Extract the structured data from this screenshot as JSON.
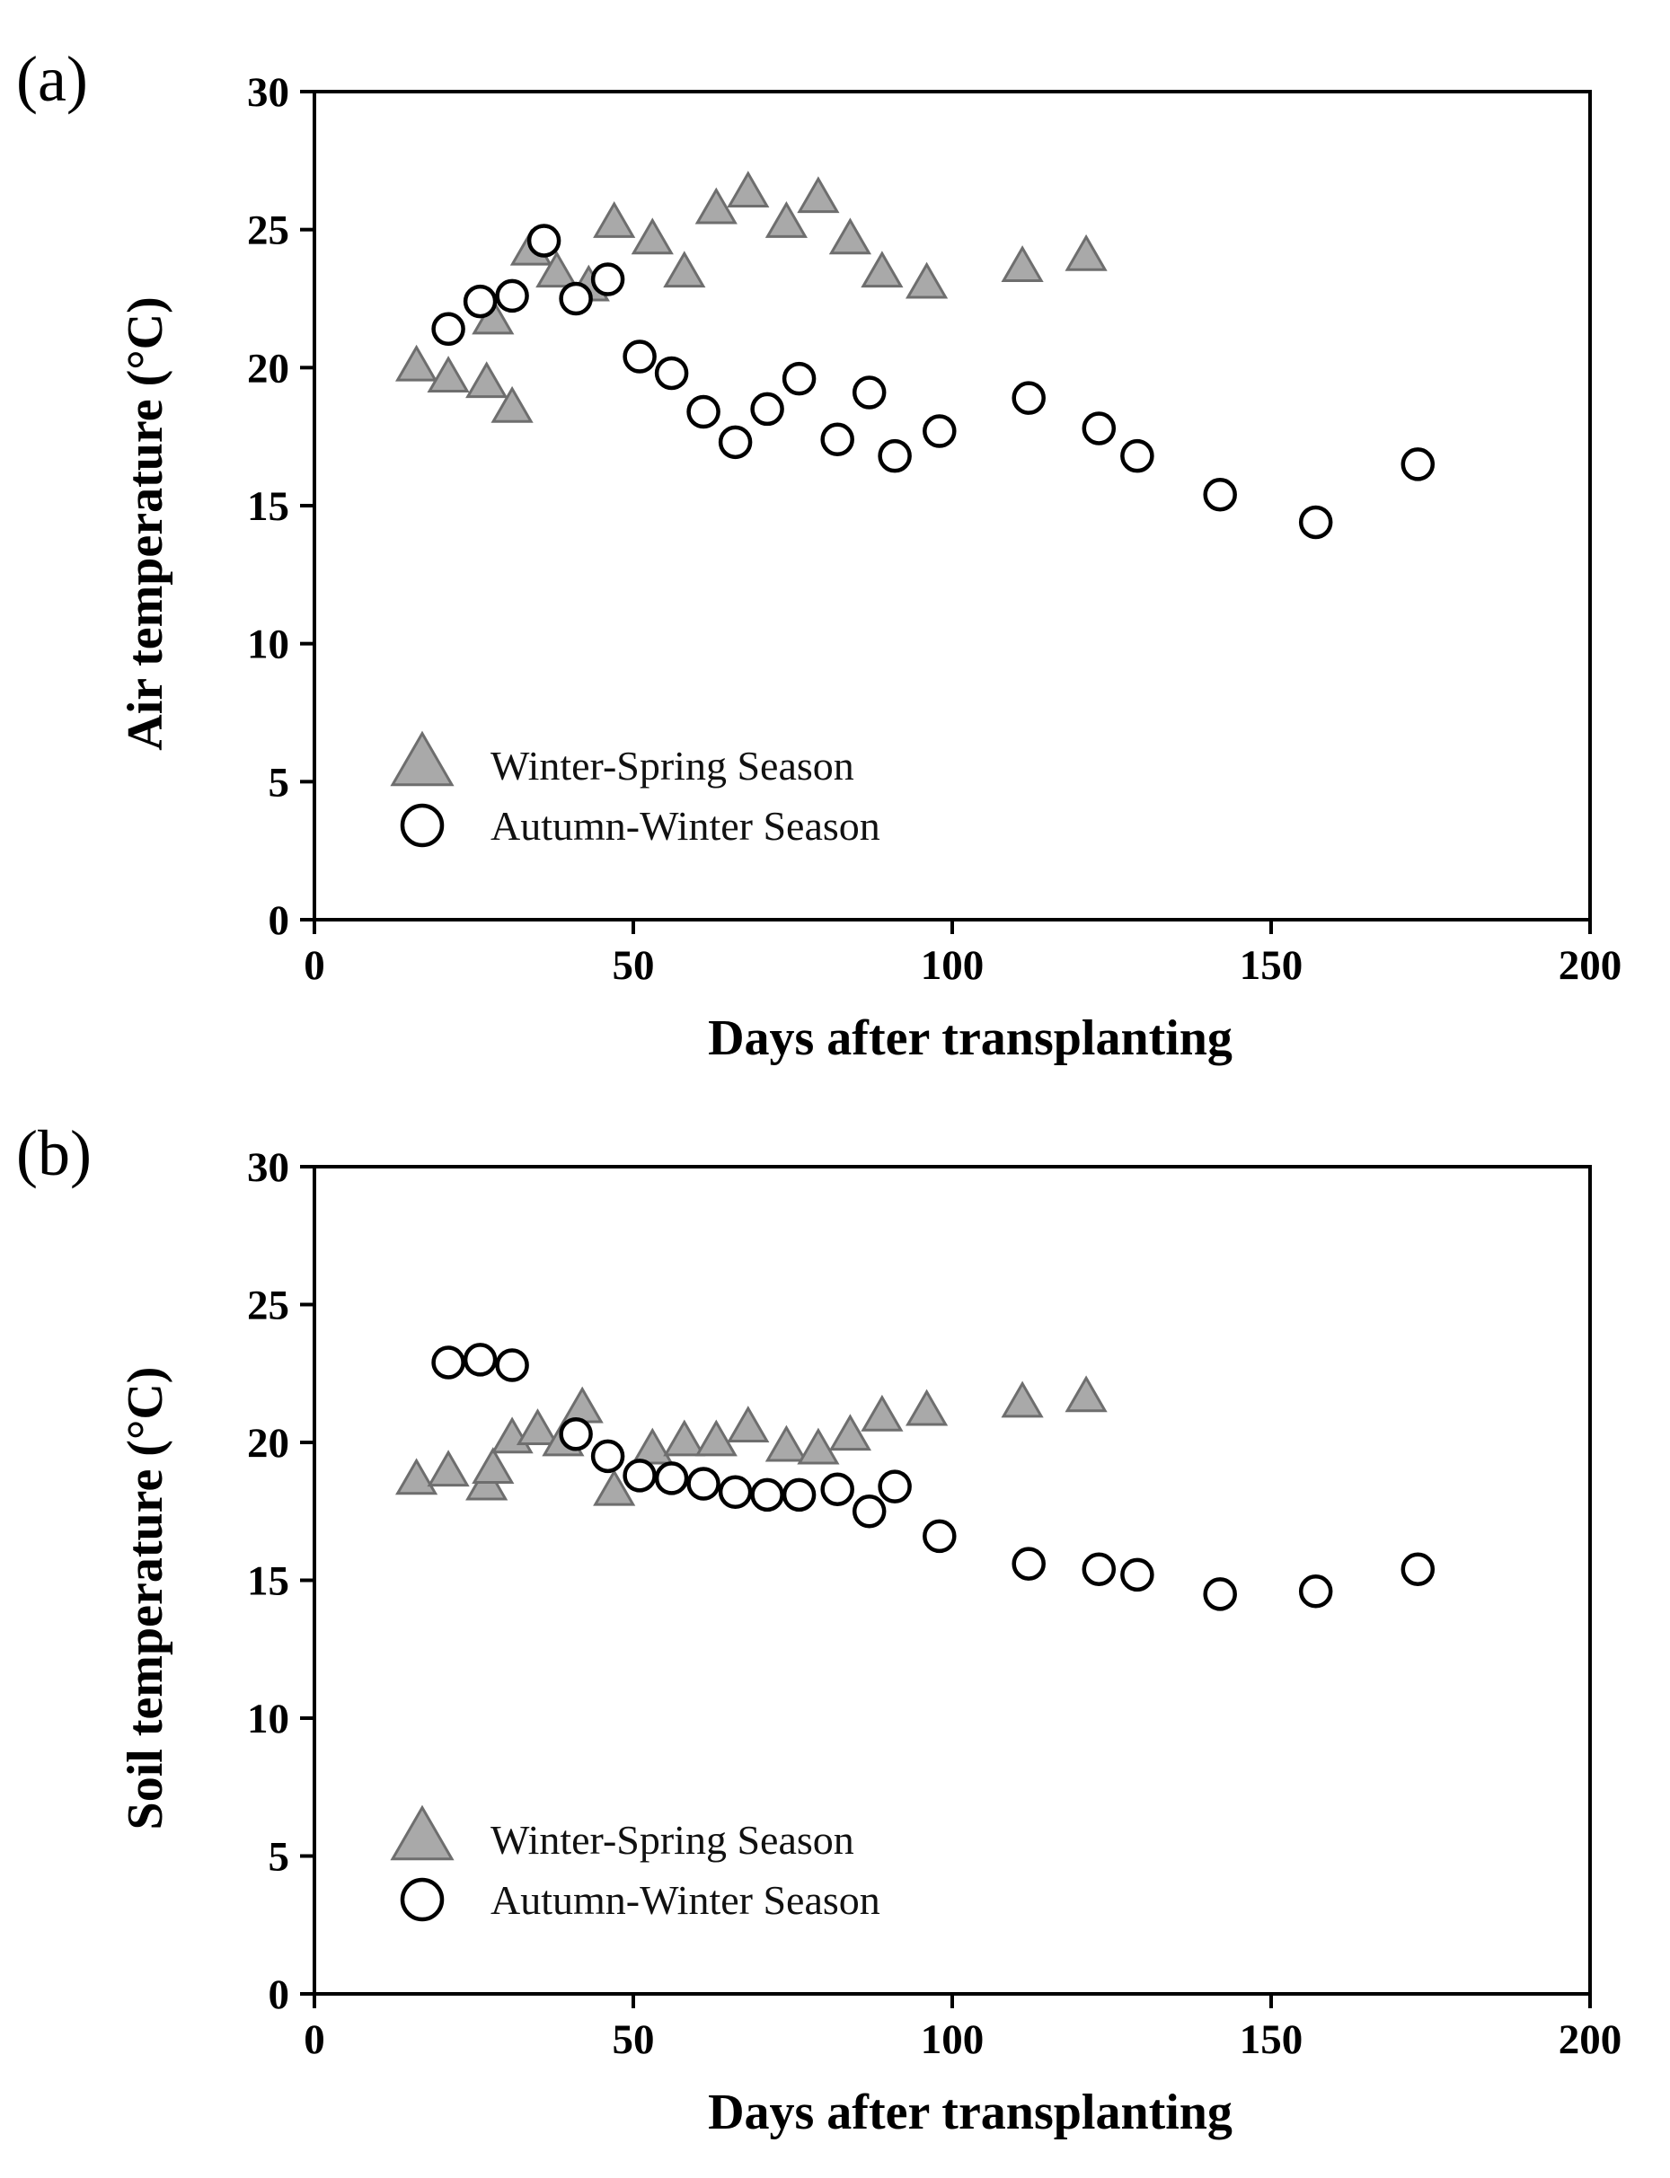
{
  "chart_data": [
    {
      "type": "scatter",
      "panel_label": "(a)",
      "xlabel": "Days after transplanting",
      "ylabel": "Air temperature (°C)",
      "xlim": [
        0,
        200
      ],
      "ylim": [
        0,
        30
      ],
      "xticks": [
        "0",
        "50",
        "100",
        "150",
        "200"
      ],
      "yticks": [
        "0",
        "5",
        "10",
        "15",
        "20",
        "25",
        "30"
      ],
      "legend_position": "lower-left",
      "series": [
        {
          "name": "Winter-Spring Season",
          "marker": "triangle",
          "color": "#a9a9a9",
          "points": [
            [
              16,
              20.0
            ],
            [
              21,
              19.6
            ],
            [
              27,
              19.4
            ],
            [
              28,
              21.7
            ],
            [
              31,
              18.5
            ],
            [
              34,
              24.2
            ],
            [
              38,
              23.4
            ],
            [
              43,
              22.9
            ],
            [
              47,
              25.2
            ],
            [
              53,
              24.6
            ],
            [
              58,
              23.4
            ],
            [
              63,
              25.7
            ],
            [
              68,
              26.3
            ],
            [
              74,
              25.2
            ],
            [
              79,
              26.1
            ],
            [
              84,
              24.6
            ],
            [
              89,
              23.4
            ],
            [
              96,
              23.0
            ],
            [
              111,
              23.6
            ],
            [
              121,
              24.0
            ]
          ]
        },
        {
          "name": "Autumn-Winter Season",
          "marker": "circle",
          "color": "#ffffff",
          "points": [
            [
              21,
              21.4
            ],
            [
              26,
              22.4
            ],
            [
              31,
              22.6
            ],
            [
              36,
              24.6
            ],
            [
              41,
              22.5
            ],
            [
              46,
              23.2
            ],
            [
              51,
              20.4
            ],
            [
              56,
              19.8
            ],
            [
              61,
              18.4
            ],
            [
              66,
              17.3
            ],
            [
              71,
              18.5
            ],
            [
              76,
              19.6
            ],
            [
              82,
              17.4
            ],
            [
              87,
              19.1
            ],
            [
              91,
              16.8
            ],
            [
              98,
              17.7
            ],
            [
              112,
              18.9
            ],
            [
              123,
              17.8
            ],
            [
              129,
              16.8
            ],
            [
              142,
              15.4
            ],
            [
              157,
              14.4
            ],
            [
              173,
              16.5
            ]
          ]
        }
      ]
    },
    {
      "type": "scatter",
      "panel_label": "(b)",
      "xlabel": "Days after transplanting",
      "ylabel": "Soil temperature (°C)",
      "xlim": [
        0,
        200
      ],
      "ylim": [
        0,
        30
      ],
      "xticks": [
        "0",
        "50",
        "100",
        "150",
        "200"
      ],
      "yticks": [
        "0",
        "5",
        "10",
        "15",
        "20",
        "25",
        "30"
      ],
      "legend_position": "lower-left",
      "series": [
        {
          "name": "Winter-Spring Season",
          "marker": "triangle",
          "color": "#a9a9a9",
          "points": [
            [
              16,
              18.6
            ],
            [
              21,
              18.9
            ],
            [
              27,
              18.4
            ],
            [
              28,
              19.0
            ],
            [
              31,
              20.1
            ],
            [
              35,
              20.4
            ],
            [
              39,
              20.0
            ],
            [
              42,
              21.2
            ],
            [
              47,
              18.2
            ],
            [
              53,
              19.7
            ],
            [
              58,
              20.0
            ],
            [
              63,
              20.0
            ],
            [
              68,
              20.5
            ],
            [
              74,
              19.8
            ],
            [
              79,
              19.7
            ],
            [
              84,
              20.2
            ],
            [
              89,
              20.9
            ],
            [
              96,
              21.1
            ],
            [
              111,
              21.4
            ],
            [
              121,
              21.6
            ]
          ]
        },
        {
          "name": "Autumn-Winter Season",
          "marker": "circle",
          "color": "#ffffff",
          "points": [
            [
              21,
              22.9
            ],
            [
              26,
              23.0
            ],
            [
              31,
              22.8
            ],
            [
              41,
              20.3
            ],
            [
              46,
              19.5
            ],
            [
              51,
              18.8
            ],
            [
              56,
              18.7
            ],
            [
              61,
              18.5
            ],
            [
              66,
              18.2
            ],
            [
              71,
              18.1
            ],
            [
              76,
              18.1
            ],
            [
              82,
              18.3
            ],
            [
              87,
              17.5
            ],
            [
              91,
              18.4
            ],
            [
              98,
              16.6
            ],
            [
              112,
              15.6
            ],
            [
              123,
              15.4
            ],
            [
              129,
              15.2
            ],
            [
              142,
              14.5
            ],
            [
              157,
              14.6
            ],
            [
              173,
              15.4
            ]
          ]
        }
      ]
    }
  ]
}
